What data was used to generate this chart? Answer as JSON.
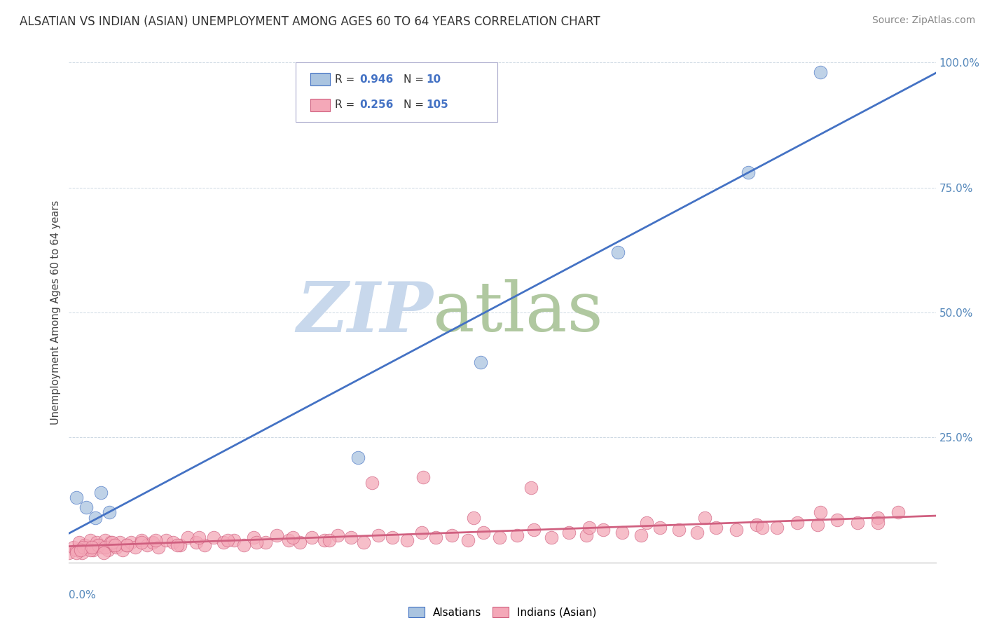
{
  "title": "ALSATIAN VS INDIAN (ASIAN) UNEMPLOYMENT AMONG AGES 60 TO 64 YEARS CORRELATION CHART",
  "source": "Source: ZipAtlas.com",
  "yaxis_label": "Unemployment Among Ages 60 to 64 years",
  "xlim": [
    0.0,
    0.6
  ],
  "ylim": [
    0.0,
    1.0
  ],
  "legend1_r": "0.946",
  "legend1_n": "10",
  "legend2_r": "0.256",
  "legend2_n": "105",
  "legend1_label": "Alsatians",
  "legend2_label": "Indians (Asian)",
  "blue_color": "#aac4e0",
  "blue_line_color": "#4472c4",
  "pink_color": "#f4a8b8",
  "pink_line_color": "#d06080",
  "watermark_zip": "ZIP",
  "watermark_atlas": "atlas",
  "watermark_color_zip": "#c8d8ec",
  "watermark_color_atlas": "#b0c8a0",
  "title_fontsize": 12,
  "source_fontsize": 10,
  "background_color": "#ffffff",
  "grid_color": "#c8d4e0",
  "alsatian_x": [
    0.005,
    0.012,
    0.018,
    0.022,
    0.028,
    0.2,
    0.285,
    0.38,
    0.47,
    0.52
  ],
  "alsatian_y": [
    0.13,
    0.11,
    0.09,
    0.14,
    0.1,
    0.21,
    0.4,
    0.62,
    0.78,
    0.98
  ],
  "indian_x": [
    0.0,
    0.003,
    0.005,
    0.007,
    0.009,
    0.011,
    0.013,
    0.015,
    0.017,
    0.019,
    0.021,
    0.023,
    0.025,
    0.027,
    0.029,
    0.031,
    0.033,
    0.035,
    0.037,
    0.04,
    0.043,
    0.046,
    0.05,
    0.054,
    0.058,
    0.062,
    0.067,
    0.072,
    0.077,
    0.082,
    0.088,
    0.094,
    0.1,
    0.107,
    0.114,
    0.121,
    0.128,
    0.136,
    0.144,
    0.152,
    0.16,
    0.168,
    0.177,
    0.186,
    0.195,
    0.204,
    0.214,
    0.224,
    0.234,
    0.244,
    0.254,
    0.265,
    0.276,
    0.287,
    0.298,
    0.31,
    0.322,
    0.334,
    0.346,
    0.358,
    0.37,
    0.383,
    0.396,
    0.409,
    0.422,
    0.435,
    0.448,
    0.462,
    0.476,
    0.49,
    0.504,
    0.518,
    0.532,
    0.546,
    0.56,
    0.574,
    0.005,
    0.01,
    0.015,
    0.02,
    0.025,
    0.03,
    0.04,
    0.05,
    0.06,
    0.075,
    0.09,
    0.11,
    0.13,
    0.155,
    0.18,
    0.21,
    0.245,
    0.28,
    0.32,
    0.36,
    0.4,
    0.44,
    0.48,
    0.52,
    0.56,
    0.008,
    0.016,
    0.024,
    0.032
  ],
  "indian_y": [
    0.02,
    0.03,
    0.025,
    0.04,
    0.02,
    0.035,
    0.03,
    0.045,
    0.025,
    0.04,
    0.035,
    0.03,
    0.045,
    0.025,
    0.04,
    0.035,
    0.03,
    0.04,
    0.025,
    0.035,
    0.04,
    0.03,
    0.045,
    0.035,
    0.04,
    0.03,
    0.045,
    0.04,
    0.035,
    0.05,
    0.04,
    0.035,
    0.05,
    0.04,
    0.045,
    0.035,
    0.05,
    0.04,
    0.055,
    0.045,
    0.04,
    0.05,
    0.045,
    0.055,
    0.05,
    0.04,
    0.055,
    0.05,
    0.045,
    0.06,
    0.05,
    0.055,
    0.045,
    0.06,
    0.05,
    0.055,
    0.065,
    0.05,
    0.06,
    0.055,
    0.065,
    0.06,
    0.055,
    0.07,
    0.065,
    0.06,
    0.07,
    0.065,
    0.075,
    0.07,
    0.08,
    0.075,
    0.085,
    0.08,
    0.09,
    0.1,
    0.02,
    0.03,
    0.025,
    0.035,
    0.03,
    0.04,
    0.035,
    0.04,
    0.045,
    0.035,
    0.05,
    0.045,
    0.04,
    0.05,
    0.045,
    0.16,
    0.17,
    0.09,
    0.15,
    0.07,
    0.08,
    0.09,
    0.07,
    0.1,
    0.08,
    0.025,
    0.03,
    0.02,
    0.035
  ]
}
